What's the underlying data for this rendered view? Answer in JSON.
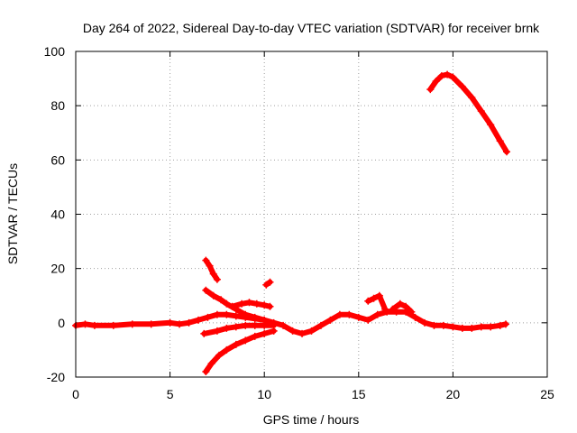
{
  "chart_data": {
    "type": "scatter",
    "title": "Day 264 of 2022, Sidereal Day-to-day VTEC variation (SDTVAR) for receiver brnk",
    "xlabel": "GPS time / hours",
    "ylabel": "SDTVAR / TECUs",
    "xlim": [
      0,
      25
    ],
    "ylim": [
      -20,
      100
    ],
    "xticks": [
      0,
      5,
      10,
      15,
      20,
      25
    ],
    "yticks": [
      -20,
      0,
      20,
      40,
      60,
      80,
      100
    ],
    "grid": true,
    "marker": "+",
    "color": "#ff0000",
    "series": [
      {
        "name": "baseline",
        "points": [
          [
            0,
            -1
          ],
          [
            0.5,
            -0.5
          ],
          [
            1,
            -1
          ],
          [
            2,
            -1
          ],
          [
            3,
            -0.5
          ],
          [
            4,
            -0.5
          ],
          [
            5,
            0
          ],
          [
            5.5,
            -0.5
          ],
          [
            6,
            0
          ],
          [
            6.5,
            1
          ],
          [
            7,
            2
          ],
          [
            7.5,
            3
          ],
          [
            8,
            3
          ],
          [
            8.5,
            2.5
          ],
          [
            9,
            2
          ],
          [
            9.5,
            1.5
          ],
          [
            10,
            1
          ],
          [
            10.5,
            0
          ],
          [
            11,
            -1
          ],
          [
            11.5,
            -3
          ],
          [
            12,
            -4
          ],
          [
            12.5,
            -3
          ],
          [
            13,
            -1
          ],
          [
            13.5,
            1
          ],
          [
            14,
            3
          ],
          [
            14.5,
            3
          ],
          [
            15,
            2
          ],
          [
            15.5,
            1
          ],
          [
            16,
            3
          ],
          [
            16.5,
            4
          ],
          [
            17,
            4
          ],
          [
            17.5,
            4
          ],
          [
            18,
            2
          ],
          [
            18.5,
            0
          ],
          [
            19,
            -1
          ],
          [
            19.5,
            -1
          ],
          [
            20,
            -1.5
          ],
          [
            20.5,
            -2
          ],
          [
            21,
            -2
          ],
          [
            21.5,
            -1.5
          ],
          [
            22,
            -1.5
          ],
          [
            22.5,
            -1
          ],
          [
            22.8,
            -0.5
          ]
        ]
      },
      {
        "name": "arc-up",
        "points": [
          [
            6.8,
            -4
          ],
          [
            7.5,
            -3
          ],
          [
            8,
            -2
          ],
          [
            8.5,
            -1.5
          ],
          [
            9,
            -1
          ],
          [
            9.5,
            -1
          ],
          [
            10,
            -1
          ],
          [
            10.5,
            -1
          ]
        ]
      },
      {
        "name": "arc-low",
        "points": [
          [
            6.9,
            -18
          ],
          [
            7.2,
            -15
          ],
          [
            7.6,
            -12
          ],
          [
            8,
            -10
          ],
          [
            8.5,
            -8
          ],
          [
            9,
            -6.5
          ],
          [
            9.5,
            -5
          ],
          [
            10,
            -4
          ],
          [
            10.5,
            -3
          ]
        ]
      },
      {
        "name": "arc-mid",
        "points": [
          [
            6.9,
            12
          ],
          [
            7.3,
            10
          ],
          [
            7.7,
            8.5
          ],
          [
            8,
            7
          ],
          [
            8.5,
            5
          ],
          [
            9,
            3
          ],
          [
            9.5,
            2
          ],
          [
            10,
            1
          ]
        ]
      },
      {
        "name": "arc-high",
        "points": [
          [
            6.9,
            23
          ],
          [
            7.1,
            21
          ],
          [
            7.3,
            18
          ],
          [
            7.5,
            16
          ]
        ]
      },
      {
        "name": "arc-9",
        "points": [
          [
            8.3,
            6
          ],
          [
            8.8,
            7
          ],
          [
            9.2,
            7.5
          ],
          [
            9.6,
            7
          ],
          [
            10,
            6.5
          ],
          [
            10.3,
            6
          ]
        ]
      },
      {
        "name": "arc-10",
        "points": [
          [
            10.1,
            14
          ],
          [
            10.3,
            15
          ]
        ]
      },
      {
        "name": "arc-16",
        "points": [
          [
            15.5,
            8
          ],
          [
            15.8,
            9
          ],
          [
            16.1,
            10
          ],
          [
            16.4,
            5
          ]
        ]
      },
      {
        "name": "arc-17",
        "points": [
          [
            16.8,
            5
          ],
          [
            17.2,
            7
          ],
          [
            17.5,
            6
          ],
          [
            17.8,
            4
          ]
        ]
      },
      {
        "name": "arc-late",
        "points": [
          [
            18.8,
            86
          ],
          [
            19.1,
            89
          ],
          [
            19.4,
            91
          ],
          [
            19.7,
            91.5
          ],
          [
            20,
            90.5
          ],
          [
            20.5,
            87
          ],
          [
            21,
            83
          ],
          [
            21.5,
            78
          ],
          [
            22,
            73
          ],
          [
            22.5,
            67
          ],
          [
            22.85,
            63
          ]
        ]
      }
    ]
  }
}
